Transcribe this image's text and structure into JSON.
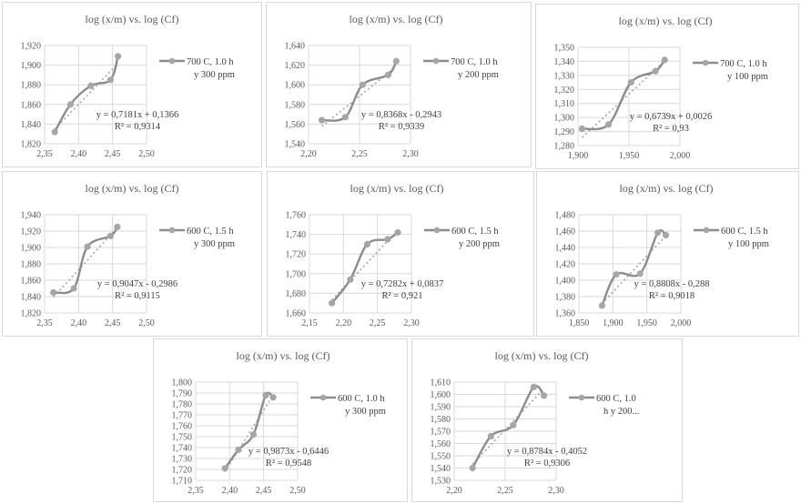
{
  "chart_data": [
    {
      "type": "line",
      "title": "log (x/m) vs. log (Cf)",
      "legend": [
        "700 C, 1.0 h",
        "y 300 ppm"
      ],
      "legend_placement": "right",
      "x": [
        2.365,
        2.388,
        2.418,
        2.447,
        2.458
      ],
      "y": [
        1.832,
        1.86,
        1.879,
        1.885,
        1.909
      ],
      "xlim": [
        2.35,
        2.5
      ],
      "ylim": [
        1.82,
        1.92
      ],
      "x_major_unit": 0.05,
      "y_major_unit": 0.02,
      "xticks": [
        "2,35",
        "2,40",
        "2,45",
        "2,50"
      ],
      "yticks": [
        "1,820",
        "1,840",
        "1,860",
        "1,880",
        "1,900",
        "1,920"
      ],
      "trendline": {
        "type": "linear",
        "slope": 0.7181,
        "intercept": 0.1366,
        "equation": "y = 0,7181x + 0,1366",
        "r2": "R² = 0,9314"
      },
      "grid": true
    },
    {
      "type": "line",
      "title": "log (x/m) vs. log (Cf)",
      "legend": [
        "700 C, 1.0 h",
        "y 200 ppm"
      ],
      "legend_placement": "right",
      "x": [
        2.213,
        2.236,
        2.253,
        2.278,
        2.286
      ],
      "y": [
        1.564,
        1.567,
        1.6,
        1.61,
        1.624
      ],
      "xlim": [
        2.2,
        2.3
      ],
      "ylim": [
        1.54,
        1.64
      ],
      "x_major_unit": 0.05,
      "y_major_unit": 0.02,
      "xticks": [
        "2,20",
        "2,25",
        "2,30"
      ],
      "yticks": [
        "1,540",
        "1,560",
        "1,580",
        "1,600",
        "1,620",
        "1,640"
      ],
      "trendline": {
        "type": "linear",
        "slope": 0.8368,
        "intercept": -0.2943,
        "equation": "y = 0,8368x - 0,2943",
        "r2": "R² = 0,9339"
      },
      "grid": true
    },
    {
      "type": "line",
      "title": "log (x/m) vs. log (Cf)",
      "legend": [
        "700 C, 1.0 h",
        "y 100 ppm"
      ],
      "legend_placement": "right",
      "x": [
        1.904,
        1.93,
        1.952,
        1.976,
        1.985
      ],
      "y": [
        1.292,
        1.295,
        1.325,
        1.333,
        1.341
      ],
      "xlim": [
        1.9,
        2.0
      ],
      "ylim": [
        1.28,
        1.35
      ],
      "x_major_unit": 0.05,
      "y_major_unit": 0.01,
      "xticks": [
        "1,900",
        "1,950",
        "2,000"
      ],
      "yticks": [
        "1,280",
        "1,290",
        "1,300",
        "1,310",
        "1,320",
        "1,330",
        "1,340",
        "1,350"
      ],
      "trendline": {
        "type": "linear",
        "slope": 0.6739,
        "intercept": 0.0026,
        "equation": "y = 0,6739x + 0,0026",
        "r2": "R² = 0,93"
      },
      "grid": true
    },
    {
      "type": "line",
      "title": "log (x/m) vs. log (Cf)",
      "legend": [
        "600 C, 1.5 h",
        "y 300 ppm"
      ],
      "legend_placement": "right",
      "x": [
        2.363,
        2.393,
        2.413,
        2.447,
        2.457
      ],
      "y": [
        1.845,
        1.85,
        1.901,
        1.914,
        1.925
      ],
      "xlim": [
        2.35,
        2.5
      ],
      "ylim": [
        1.82,
        1.94
      ],
      "x_major_unit": 0.05,
      "y_major_unit": 0.02,
      "xticks": [
        "2,35",
        "2,40",
        "2,45",
        "2,50"
      ],
      "yticks": [
        "1,820",
        "1,840",
        "1,860",
        "1,880",
        "1,900",
        "1,920",
        "1,940"
      ],
      "trendline": {
        "type": "linear",
        "slope": 0.9047,
        "intercept": -0.2986,
        "equation": "y = 0,9047x - 0,2986",
        "r2": "R² = 0,9115"
      },
      "grid": true
    },
    {
      "type": "line",
      "title": "log (x/m) vs. log (Cf)",
      "legend": [
        "600 C, 1.5 h",
        "y 200 ppm"
      ],
      "legend_placement": "right",
      "x": [
        2.183,
        2.21,
        2.235,
        2.265,
        2.28
      ],
      "y": [
        1.67,
        1.694,
        1.73,
        1.735,
        1.742
      ],
      "xlim": [
        2.15,
        2.3
      ],
      "ylim": [
        1.66,
        1.76
      ],
      "x_major_unit": 0.05,
      "y_major_unit": 0.02,
      "xticks": [
        "2,15",
        "2,20",
        "2,25",
        "2,30"
      ],
      "yticks": [
        "1,660",
        "1,680",
        "1,700",
        "1,720",
        "1,740",
        "1,760"
      ],
      "trendline": {
        "type": "linear",
        "slope": 0.7282,
        "intercept": 0.0837,
        "equation": "y = 0,7282x + 0,0837",
        "r2": "R² = 0,921"
      },
      "grid": true
    },
    {
      "type": "line",
      "title": "log (x/m) vs. log (Cf)",
      "legend": [
        "600 C, 1.5 h",
        "y 100 ppm"
      ],
      "legend_placement": "right",
      "x": [
        1.884,
        1.905,
        1.94,
        1.966,
        1.978
      ],
      "y": [
        1.369,
        1.407,
        1.408,
        1.458,
        1.455
      ],
      "xlim": [
        1.85,
        2.0
      ],
      "ylim": [
        1.36,
        1.48
      ],
      "x_major_unit": 0.05,
      "y_major_unit": 0.02,
      "xticks": [
        "1,850",
        "1,900",
        "1,950",
        "2,000"
      ],
      "yticks": [
        "1,360",
        "1,380",
        "1,400",
        "1,420",
        "1,440",
        "1,460",
        "1,480"
      ],
      "trendline": {
        "type": "linear",
        "slope": 0.8808,
        "intercept": -0.288,
        "equation": "y = 0,8808x - 0,288",
        "r2": "R² = 0,9018"
      },
      "grid": true
    },
    {
      "type": "line",
      "title": "log (x/m) vs. log (Cf)",
      "legend": [
        "600 C, 1.0 h",
        "y 300 ppm"
      ],
      "legend_placement": "right",
      "x": [
        2.393,
        2.413,
        2.435,
        2.453,
        2.464
      ],
      "y": [
        1.721,
        1.738,
        1.752,
        1.788,
        1.786
      ],
      "xlim": [
        2.35,
        2.5
      ],
      "ylim": [
        1.71,
        1.8
      ],
      "x_major_unit": 0.05,
      "y_major_unit": 0.01,
      "xticks": [
        "2,35",
        "2,40",
        "2,45",
        "2,50"
      ],
      "yticks": [
        "1,710",
        "1,720",
        "1,730",
        "1,740",
        "1,750",
        "1,760",
        "1,770",
        "1,780",
        "1,790",
        "1,800"
      ],
      "trendline": {
        "type": "linear",
        "slope": 0.9873,
        "intercept": -0.6446,
        "equation": "y = 0,9873x - 0,6446",
        "r2": "R² = 0,9548"
      },
      "grid": true
    },
    {
      "type": "line",
      "title": "log (x/m) vs. log (Cf)",
      "legend": [
        "600 C, 1.0",
        "h y 200..."
      ],
      "legend_placement": "right",
      "x": [
        2.218,
        2.236,
        2.258,
        2.278,
        2.288
      ],
      "y": [
        1.54,
        1.566,
        1.575,
        1.606,
        1.599
      ],
      "xlim": [
        2.2,
        2.3
      ],
      "ylim": [
        1.53,
        1.61
      ],
      "x_major_unit": 0.05,
      "y_major_unit": 0.01,
      "xticks": [
        "2,20",
        "2,25",
        "2,30"
      ],
      "yticks": [
        "1,530",
        "1,540",
        "1,550",
        "1,560",
        "1,570",
        "1,580",
        "1,590",
        "1,600",
        "1,610"
      ],
      "trendline": {
        "type": "linear",
        "slope": 0.8784,
        "intercept": -0.4052,
        "equation": "y = 0,8784x - 0,4052",
        "r2": "R² = 0,9306"
      },
      "grid": true
    }
  ],
  "colors": {
    "series": "#8c8c8c",
    "marker": "#a6a6a6",
    "trendline": "#a6a6a6",
    "grid": "#d9d9d9",
    "text": "#595959"
  }
}
